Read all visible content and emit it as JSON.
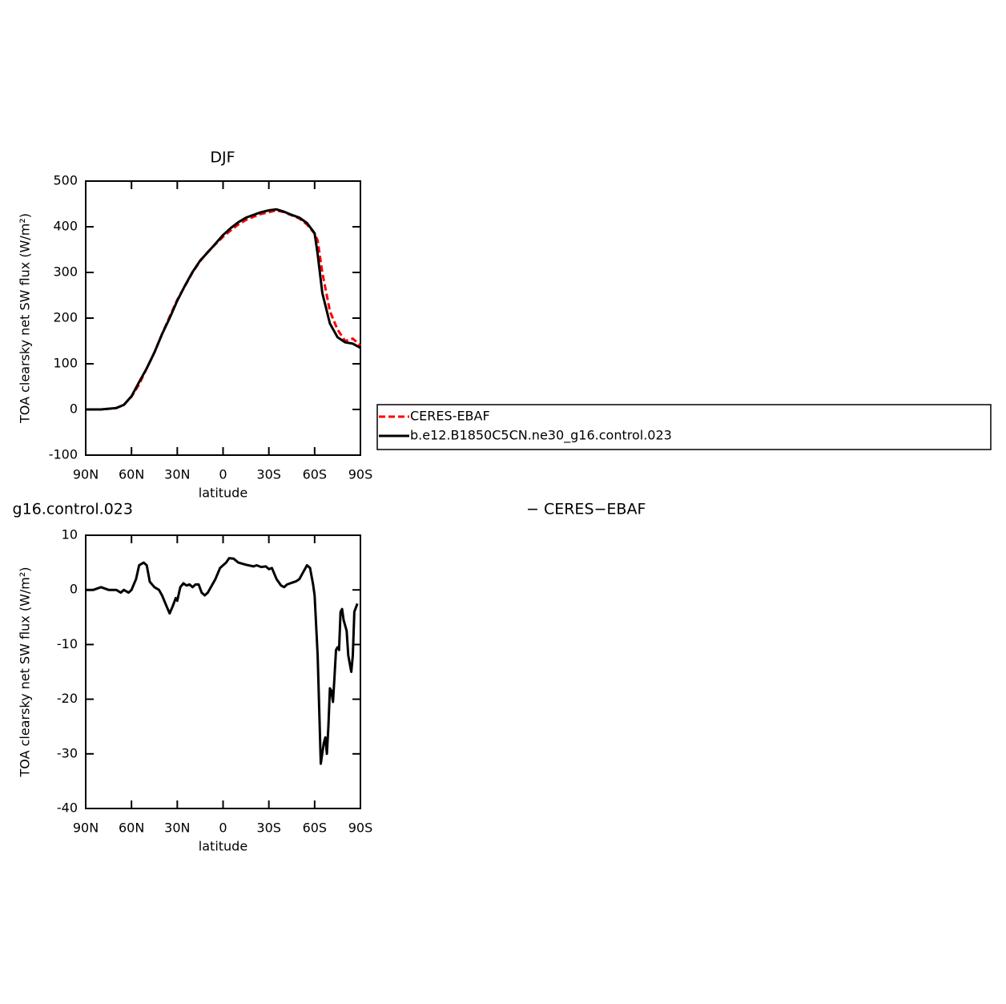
{
  "chart_data": [
    {
      "type": "line",
      "title": "DJF",
      "xlabel": "latitude",
      "ylabel": "TOA clearsky net SW flux (W/m²)",
      "x": [
        90,
        80,
        70,
        65,
        60,
        55,
        50,
        45,
        40,
        35,
        30,
        25,
        20,
        15,
        10,
        5,
        0,
        -5,
        -10,
        -15,
        -20,
        -25,
        -30,
        -35,
        -40,
        -45,
        -50,
        -55,
        -60,
        -62,
        -65,
        -70,
        -75,
        -80,
        -85,
        -90
      ],
      "series": [
        {
          "name": "CERES-EBAF",
          "color": "#ff0000",
          "dashed": true,
          "values": [
            0,
            0,
            3,
            10,
            28,
            55,
            90,
            125,
            165,
            203,
            240,
            270,
            300,
            325,
            345,
            362,
            378,
            392,
            405,
            415,
            422,
            428,
            432,
            436,
            432,
            425,
            418,
            405,
            385,
            370,
            300,
            215,
            175,
            150,
            155,
            140
          ]
        },
        {
          "name": "b.e12.B1850C5CN.ne30_g16.control.023",
          "color": "#000000",
          "dashed": false,
          "values": [
            0,
            0,
            3,
            10,
            29,
            60,
            90,
            125,
            165,
            200,
            238,
            271,
            301,
            326,
            344,
            363,
            382,
            397,
            410,
            420,
            426,
            432,
            436,
            438,
            433,
            426,
            420,
            408,
            386,
            340,
            255,
            188,
            158,
            147,
            144,
            135
          ]
        }
      ],
      "xlim": [
        90,
        -90
      ],
      "xticks": [
        {
          "value": 90,
          "label": "90N"
        },
        {
          "value": 60,
          "label": "60N"
        },
        {
          "value": 30,
          "label": "30N"
        },
        0,
        {
          "value": -30,
          "label": "30S"
        },
        {
          "value": -60,
          "label": "60S"
        },
        {
          "value": -90,
          "label": "90S"
        }
      ],
      "ylim": [
        -100,
        500
      ],
      "yticks": [
        -100,
        0,
        100,
        200,
        300,
        400,
        500
      ],
      "legend": "right"
    },
    {
      "type": "line",
      "title_left": "g16.control.023",
      "title_right": "− CERES−EBAF",
      "xlabel": "latitude",
      "ylabel": "TOA clearsky net SW flux (W/m²)",
      "x": [
        90,
        85,
        80,
        75,
        70,
        67,
        65,
        62,
        60,
        57,
        55,
        52,
        50,
        48,
        45,
        42,
        40,
        37,
        35,
        33,
        31,
        30,
        28,
        26,
        24,
        22,
        20,
        18,
        16,
        14,
        12,
        10,
        8,
        5,
        2,
        0,
        -2,
        -4,
        -7,
        -10,
        -15,
        -20,
        -22,
        -25,
        -28,
        -30,
        -32,
        -35,
        -38,
        -40,
        -42,
        -45,
        -48,
        -50,
        -53,
        -55,
        -57,
        -59,
        -60,
        -62,
        -64,
        -66,
        -67,
        -68,
        -69,
        -70,
        -71,
        -72,
        -73,
        -74,
        -75,
        -76,
        -77,
        -78,
        -79,
        -80,
        -81,
        -82,
        -84,
        -85,
        -86,
        -88
      ],
      "series": [
        {
          "color": "#000000",
          "dashed": false,
          "values": [
            0,
            0,
            0.5,
            0,
            0,
            -0.5,
            0,
            -0.5,
            0,
            2,
            4.5,
            5,
            4.5,
            1.5,
            0.5,
            0,
            -1,
            -3,
            -4.3,
            -3,
            -1.5,
            -2,
            0.5,
            1.2,
            0.8,
            1,
            0.5,
            1,
            1,
            -0.5,
            -1,
            -0.5,
            0.5,
            2,
            4,
            4.5,
            5,
            5.8,
            5.7,
            5,
            4.6,
            4.3,
            4.5,
            4.2,
            4.3,
            3.8,
            4,
            2,
            0.8,
            0.5,
            1,
            1.3,
            1.6,
            2,
            3.5,
            4.5,
            4,
            1,
            -1,
            -12,
            -31.8,
            -28,
            -27,
            -30,
            -25,
            -18,
            -18.5,
            -20.5,
            -16,
            -11,
            -10.5,
            -11,
            -4,
            -3.5,
            -5.5,
            -6.5,
            -7.5,
            -12,
            -15,
            -12,
            -4,
            -2.5
          ]
        }
      ],
      "xlim": [
        90,
        -90
      ],
      "xticks": [
        {
          "value": 90,
          "label": "90N"
        },
        {
          "value": 60,
          "label": "60N"
        },
        {
          "value": 30,
          "label": "30N"
        },
        0,
        {
          "value": -30,
          "label": "30S"
        },
        {
          "value": -60,
          "label": "60S"
        },
        {
          "value": -90,
          "label": "90S"
        }
      ],
      "ylim": [
        -40,
        10
      ],
      "yticks": [
        -40,
        -30,
        -20,
        -10,
        0,
        10
      ]
    }
  ]
}
